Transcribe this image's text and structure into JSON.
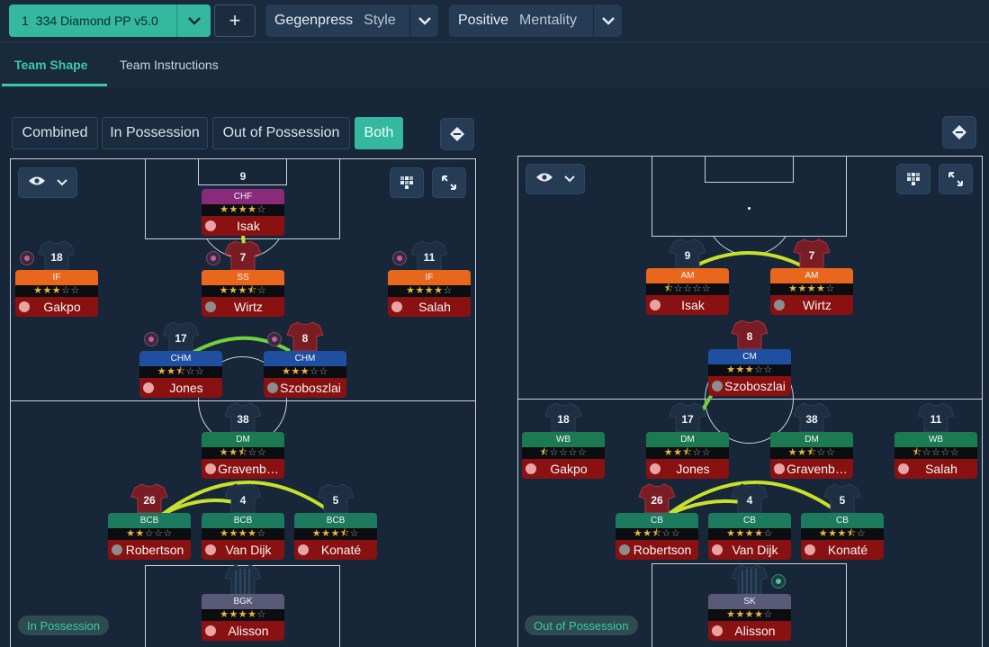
{
  "topbar": {
    "tactic_number": "1",
    "tactic_name": "334 Diamond PP v5.0",
    "add_label": "+",
    "style_value": "Gegenpress",
    "style_key": "Style",
    "mentality_value": "Positive",
    "mentality_key": "Mentality"
  },
  "tabs": {
    "team_shape": "Team Shape",
    "team_instructions": "Team Instructions"
  },
  "view_modes": {
    "combined": "Combined",
    "in_possession": "In Possession",
    "out_of_possession": "Out of Possession",
    "both": "Both",
    "selected": "both"
  },
  "left_pitch": {
    "phase_label": "In Possession",
    "players": [
      {
        "id": "isak",
        "num": "9",
        "role": "CHF",
        "role_color": "#8a2a7a",
        "stars": 4,
        "half": false,
        "name": "Isak",
        "kit": "none"
      },
      {
        "id": "gakpo",
        "num": "18",
        "role": "IF",
        "role_color": "#e8671c",
        "stars": 3,
        "half": false,
        "name": "Gakpo",
        "kit": "dark"
      },
      {
        "id": "wirtz",
        "num": "7",
        "role": "SS",
        "role_color": "#e8671c",
        "stars": 3,
        "half": true,
        "name": "Wirtz",
        "kit": "red"
      },
      {
        "id": "salah",
        "num": "11",
        "role": "IF",
        "role_color": "#e8671c",
        "stars": 4,
        "half": false,
        "name": "Salah",
        "kit": "dark"
      },
      {
        "id": "jones",
        "num": "17",
        "role": "CHM",
        "role_color": "#1f4fa0",
        "stars": 2,
        "half": true,
        "name": "Jones",
        "kit": "dark"
      },
      {
        "id": "szoboszlai",
        "num": "8",
        "role": "CHM",
        "role_color": "#1f4fa0",
        "stars": 3,
        "half": false,
        "name": "Szoboszlai",
        "kit": "red"
      },
      {
        "id": "gravenberch",
        "num": "38",
        "role": "DM",
        "role_color": "#1c7a52",
        "stars": 2,
        "half": true,
        "name": "Gravenb…",
        "kit": "dark"
      },
      {
        "id": "robertson",
        "num": "26",
        "role": "BCB",
        "role_color": "#1c7a5e",
        "stars": 2,
        "half": false,
        "name": "Robertson",
        "kit": "red"
      },
      {
        "id": "vandijk",
        "num": "4",
        "role": "BCB",
        "role_color": "#1c7a5e",
        "stars": 4,
        "half": false,
        "name": "Van Dijk",
        "kit": "dark"
      },
      {
        "id": "konate",
        "num": "5",
        "role": "BCB",
        "role_color": "#1c7a5e",
        "stars": 3,
        "half": true,
        "name": "Konaté",
        "kit": "dark"
      },
      {
        "id": "alisson",
        "num": "",
        "role": "BGK",
        "role_color": "#5a5a78",
        "stars": 4,
        "half": false,
        "name": "Alisson",
        "kit": "stripe"
      }
    ]
  },
  "right_pitch": {
    "phase_label": "Out of Possession",
    "players": [
      {
        "id": "isak",
        "num": "9",
        "role": "AM",
        "role_color": "#e8671c",
        "stars": 0,
        "half": true,
        "name": "Isak",
        "kit": "dark"
      },
      {
        "id": "wirtz",
        "num": "7",
        "role": "AM",
        "role_color": "#e8671c",
        "stars": 4,
        "half": false,
        "name": "Wirtz",
        "kit": "red"
      },
      {
        "id": "szoboszlai",
        "num": "8",
        "role": "CM",
        "role_color": "#1f4fa0",
        "stars": 3,
        "half": false,
        "name": "Szoboszlai",
        "kit": "red"
      },
      {
        "id": "gakpo",
        "num": "18",
        "role": "WB",
        "role_color": "#1c7a52",
        "stars": 0,
        "half": true,
        "name": "Gakpo",
        "kit": "dark"
      },
      {
        "id": "jones",
        "num": "17",
        "role": "DM",
        "role_color": "#1c7a52",
        "stars": 2,
        "half": true,
        "name": "Jones",
        "kit": "dark"
      },
      {
        "id": "gravenberch",
        "num": "38",
        "role": "DM",
        "role_color": "#1c7a52",
        "stars": 2,
        "half": true,
        "name": "Gravenb…",
        "kit": "dark"
      },
      {
        "id": "salah",
        "num": "11",
        "role": "WB",
        "role_color": "#1c7a52",
        "stars": 0,
        "half": true,
        "name": "Salah",
        "kit": "dark"
      },
      {
        "id": "robertson",
        "num": "26",
        "role": "CB",
        "role_color": "#1c7a5e",
        "stars": 2,
        "half": true,
        "name": "Robertson",
        "kit": "red"
      },
      {
        "id": "vandijk",
        "num": "4",
        "role": "CB",
        "role_color": "#1c7a5e",
        "stars": 4,
        "half": false,
        "name": "Van Dijk",
        "kit": "dark"
      },
      {
        "id": "konate",
        "num": "5",
        "role": "CB",
        "role_color": "#1c7a5e",
        "stars": 3,
        "half": true,
        "name": "Konaté",
        "kit": "dark"
      },
      {
        "id": "alisson",
        "num": "",
        "role": "SK",
        "role_color": "#5a5a78",
        "stars": 4,
        "half": false,
        "name": "Alisson",
        "kit": "stripe"
      }
    ]
  },
  "colors": {
    "accent": "#35b8a0",
    "link_green": "#6fd13d",
    "link_yellow": "#c8e02c",
    "name_bar": "#8a1111"
  }
}
